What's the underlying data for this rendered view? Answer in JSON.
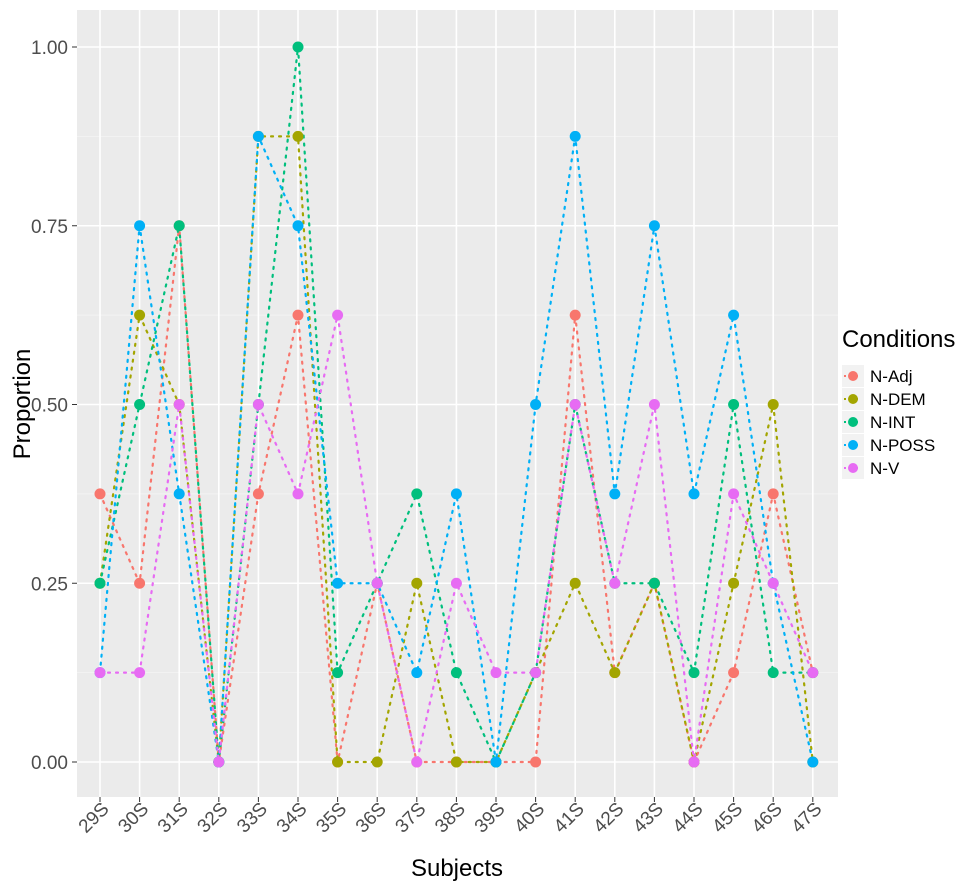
{
  "chart_data": {
    "type": "line",
    "title": "",
    "xlabel": "Subjects",
    "ylabel": "Proportion",
    "ylim": [
      0,
      1
    ],
    "yticks": [
      "0.00",
      "0.25",
      "0.50",
      "0.75",
      "1.00"
    ],
    "grid": true,
    "line_style": "dotted",
    "legend": {
      "title": "Conditions",
      "placement": "right"
    },
    "categories": [
      "29S",
      "30S",
      "31S",
      "32S",
      "33S",
      "34S",
      "35S",
      "36S",
      "37S",
      "38S",
      "39S",
      "40S",
      "41S",
      "42S",
      "43S",
      "44S",
      "45S",
      "46S",
      "47S"
    ],
    "series": [
      {
        "name": "N-Adj",
        "color": "#F8766D",
        "values": [
          0.375,
          0.25,
          0.75,
          0,
          0.375,
          0.625,
          0,
          0.25,
          0,
          0,
          0,
          0,
          0.625,
          0.125,
          0.25,
          0,
          0.125,
          0.375,
          0.125
        ]
      },
      {
        "name": "N-DEM",
        "color": "#A3A500",
        "values": [
          0.25,
          0.625,
          0.5,
          0,
          0.875,
          0.875,
          0,
          0,
          0.25,
          0,
          0,
          0.125,
          0.25,
          0.125,
          0.25,
          0,
          0.25,
          0.5,
          0
        ]
      },
      {
        "name": "N-INT",
        "color": "#00BF7D",
        "values": [
          0.25,
          0.5,
          0.75,
          0,
          0.5,
          1.0,
          0.125,
          0.25,
          0.375,
          0.125,
          0,
          0.125,
          0.5,
          0.25,
          0.25,
          0.125,
          0.5,
          0.125,
          0.125
        ]
      },
      {
        "name": "N-POSS",
        "color": "#00B0F6",
        "values": [
          0.125,
          0.75,
          0.375,
          0,
          0.875,
          0.75,
          0.25,
          0.25,
          0.125,
          0.375,
          0,
          0.5,
          0.875,
          0.375,
          0.75,
          0.375,
          0.625,
          0.25,
          0
        ]
      },
      {
        "name": "N-V",
        "color": "#E76BF3",
        "values": [
          0.125,
          0.125,
          0.5,
          0,
          0.5,
          0.375,
          0.625,
          0.25,
          0,
          0.25,
          0.125,
          0.125,
          0.5,
          0.25,
          0.5,
          0,
          0.375,
          0.25,
          0.125
        ]
      }
    ]
  }
}
